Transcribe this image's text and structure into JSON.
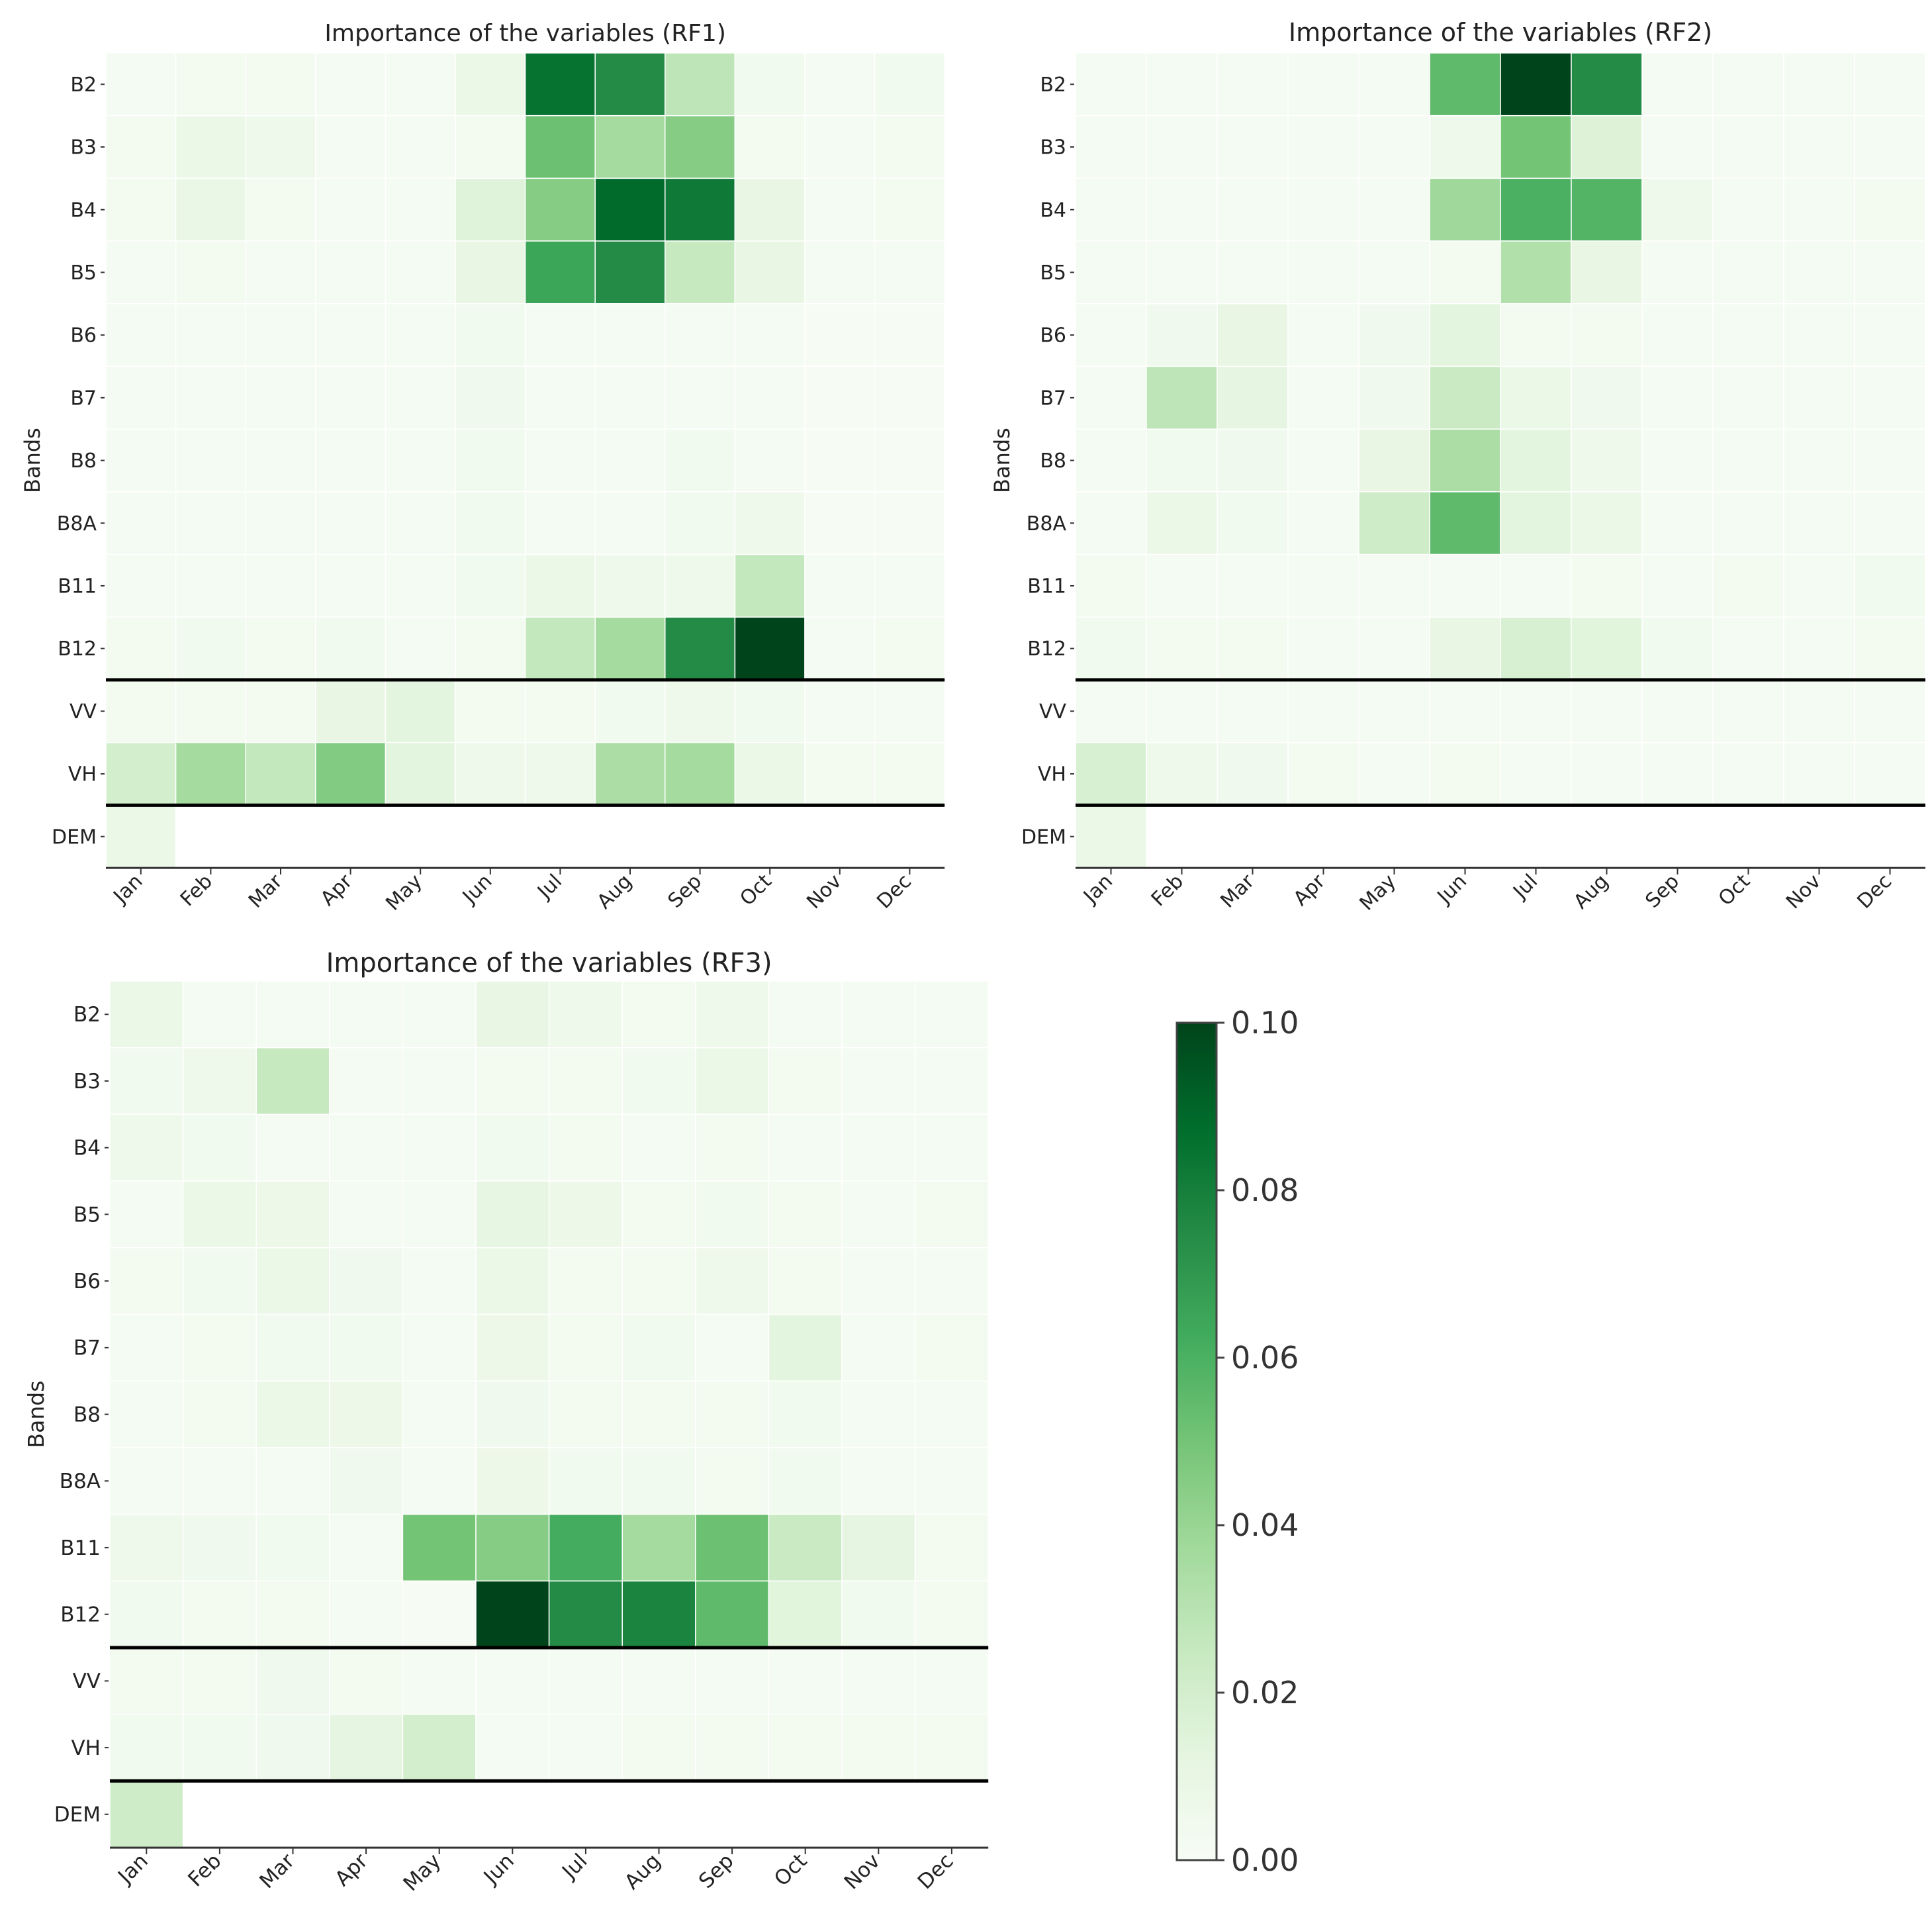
{
  "colors": {
    "scale": [
      "#f7fcf5",
      "#e5f5e0",
      "#c7e9c0",
      "#a1d99b",
      "#74c476",
      "#41ab5d",
      "#238b45",
      "#006d2c",
      "#00441b"
    ],
    "cell_stroke": "#ffffff",
    "separator": "#000000",
    "axis": "#333333"
  },
  "chart_data": [
    {
      "type": "heatmap",
      "title": "Importance of the variables (RF1)",
      "xlabel": "",
      "ylabel": "Bands",
      "x": [
        "Jan",
        "Feb",
        "Mar",
        "Apr",
        "May",
        "Jun",
        "Jul",
        "Aug",
        "Sep",
        "Oct",
        "Nov",
        "Dec"
      ],
      "y": [
        "B2",
        "B3",
        "B4",
        "B5",
        "B6",
        "B7",
        "B8",
        "B8A",
        "B11",
        "B12",
        "VV",
        "VH",
        "DEM"
      ],
      "zlim": [
        0,
        0.1
      ],
      "separators_after": [
        "B12",
        "VH"
      ],
      "values": [
        [
          0.002,
          0.003,
          0.003,
          0.002,
          0.002,
          0.008,
          0.085,
          0.075,
          0.028,
          0.004,
          0.002,
          0.004
        ],
        [
          0.003,
          0.008,
          0.006,
          0.002,
          0.002,
          0.003,
          0.052,
          0.036,
          0.045,
          0.003,
          0.002,
          0.003
        ],
        [
          0.003,
          0.009,
          0.003,
          0.002,
          0.002,
          0.015,
          0.045,
          0.088,
          0.082,
          0.01,
          0.002,
          0.003
        ],
        [
          0.002,
          0.003,
          0.002,
          0.002,
          0.002,
          0.01,
          0.065,
          0.075,
          0.025,
          0.01,
          0.002,
          0.002
        ],
        [
          0.002,
          0.002,
          0.002,
          0.002,
          0.002,
          0.004,
          0.002,
          0.002,
          0.002,
          0.002,
          0.001,
          0.001
        ],
        [
          0.002,
          0.002,
          0.002,
          0.002,
          0.002,
          0.005,
          0.002,
          0.002,
          0.002,
          0.002,
          0.001,
          0.001
        ],
        [
          0.002,
          0.002,
          0.002,
          0.002,
          0.002,
          0.004,
          0.002,
          0.002,
          0.004,
          0.002,
          0.001,
          0.001
        ],
        [
          0.002,
          0.002,
          0.002,
          0.002,
          0.002,
          0.004,
          0.002,
          0.002,
          0.004,
          0.006,
          0.001,
          0.001
        ],
        [
          0.002,
          0.002,
          0.002,
          0.002,
          0.002,
          0.004,
          0.008,
          0.006,
          0.006,
          0.026,
          0.002,
          0.002
        ],
        [
          0.003,
          0.004,
          0.003,
          0.004,
          0.002,
          0.003,
          0.026,
          0.036,
          0.075,
          0.1,
          0.002,
          0.003
        ],
        [
          0.003,
          0.003,
          0.003,
          0.01,
          0.013,
          0.003,
          0.003,
          0.004,
          0.006,
          0.004,
          0.002,
          0.002
        ],
        [
          0.02,
          0.036,
          0.026,
          0.046,
          0.013,
          0.006,
          0.006,
          0.034,
          0.036,
          0.008,
          0.003,
          0.003
        ],
        [
          0.008,
          null,
          null,
          null,
          null,
          null,
          null,
          null,
          null,
          null,
          null,
          null
        ]
      ]
    },
    {
      "type": "heatmap",
      "title": "Importance of the variables (RF2)",
      "xlabel": "",
      "ylabel": "Bands",
      "x": [
        "Jan",
        "Feb",
        "Mar",
        "Apr",
        "May",
        "Jun",
        "Jul",
        "Aug",
        "Sep",
        "Oct",
        "Nov",
        "Dec"
      ],
      "y": [
        "B2",
        "B3",
        "B4",
        "B5",
        "B6",
        "B7",
        "B8",
        "B8A",
        "B11",
        "B12",
        "VV",
        "VH",
        "DEM"
      ],
      "zlim": [
        0,
        0.1
      ],
      "separators_after": [
        "B12",
        "VH"
      ],
      "values": [
        [
          0.002,
          0.002,
          0.002,
          0.002,
          0.002,
          0.055,
          0.1,
          0.075,
          0.002,
          0.002,
          0.002,
          0.002
        ],
        [
          0.002,
          0.002,
          0.002,
          0.002,
          0.002,
          0.006,
          0.05,
          0.016,
          0.002,
          0.002,
          0.002,
          0.002
        ],
        [
          0.002,
          0.002,
          0.002,
          0.002,
          0.002,
          0.038,
          0.06,
          0.058,
          0.006,
          0.002,
          0.002,
          0.003
        ],
        [
          0.002,
          0.002,
          0.002,
          0.002,
          0.002,
          0.003,
          0.032,
          0.01,
          0.002,
          0.002,
          0.002,
          0.002
        ],
        [
          0.002,
          0.005,
          0.01,
          0.002,
          0.005,
          0.013,
          0.003,
          0.003,
          0.002,
          0.002,
          0.002,
          0.002
        ],
        [
          0.002,
          0.028,
          0.012,
          0.002,
          0.005,
          0.024,
          0.008,
          0.005,
          0.002,
          0.002,
          0.002,
          0.002
        ],
        [
          0.002,
          0.004,
          0.005,
          0.002,
          0.01,
          0.034,
          0.013,
          0.006,
          0.002,
          0.002,
          0.002,
          0.002
        ],
        [
          0.002,
          0.008,
          0.004,
          0.002,
          0.022,
          0.055,
          0.013,
          0.008,
          0.002,
          0.002,
          0.002,
          0.002
        ],
        [
          0.003,
          0.002,
          0.002,
          0.002,
          0.002,
          0.002,
          0.002,
          0.003,
          0.002,
          0.003,
          0.002,
          0.004
        ],
        [
          0.004,
          0.003,
          0.003,
          0.002,
          0.002,
          0.01,
          0.018,
          0.014,
          0.004,
          0.002,
          0.002,
          0.003
        ],
        [
          0.002,
          0.002,
          0.002,
          0.002,
          0.002,
          0.002,
          0.002,
          0.002,
          0.002,
          0.002,
          0.002,
          0.002
        ],
        [
          0.018,
          0.006,
          0.005,
          0.003,
          0.002,
          0.003,
          0.002,
          0.002,
          0.002,
          0.002,
          0.002,
          0.002
        ],
        [
          0.008,
          null,
          null,
          null,
          null,
          null,
          null,
          null,
          null,
          null,
          null,
          null
        ]
      ]
    },
    {
      "type": "heatmap",
      "title": "Importance of the variables (RF3)",
      "xlabel": "",
      "ylabel": "Bands",
      "x": [
        "Jan",
        "Feb",
        "Mar",
        "Apr",
        "May",
        "Jun",
        "Jul",
        "Aug",
        "Sep",
        "Oct",
        "Nov",
        "Dec"
      ],
      "y": [
        "B2",
        "B3",
        "B4",
        "B5",
        "B6",
        "B7",
        "B8",
        "B8A",
        "B11",
        "B12",
        "VV",
        "VH",
        "DEM"
      ],
      "zlim": [
        0,
        0.1
      ],
      "separators_after": [
        "B12",
        "VH"
      ],
      "values": [
        [
          0.008,
          0.002,
          0.002,
          0.002,
          0.002,
          0.01,
          0.006,
          0.003,
          0.006,
          0.002,
          0.002,
          0.002
        ],
        [
          0.004,
          0.006,
          0.025,
          0.002,
          0.002,
          0.003,
          0.003,
          0.004,
          0.008,
          0.003,
          0.002,
          0.002
        ],
        [
          0.006,
          0.004,
          0.002,
          0.002,
          0.002,
          0.004,
          0.003,
          0.002,
          0.003,
          0.002,
          0.002,
          0.002
        ],
        [
          0.002,
          0.008,
          0.007,
          0.002,
          0.002,
          0.011,
          0.007,
          0.003,
          0.004,
          0.003,
          0.002,
          0.003
        ],
        [
          0.003,
          0.004,
          0.008,
          0.005,
          0.002,
          0.008,
          0.003,
          0.003,
          0.006,
          0.003,
          0.002,
          0.002
        ],
        [
          0.002,
          0.003,
          0.004,
          0.004,
          0.002,
          0.007,
          0.003,
          0.004,
          0.002,
          0.013,
          0.002,
          0.003
        ],
        [
          0.002,
          0.003,
          0.008,
          0.007,
          0.002,
          0.005,
          0.003,
          0.003,
          0.003,
          0.004,
          0.002,
          0.002
        ],
        [
          0.002,
          0.002,
          0.002,
          0.005,
          0.002,
          0.007,
          0.004,
          0.004,
          0.003,
          0.004,
          0.002,
          0.002
        ],
        [
          0.006,
          0.005,
          0.004,
          0.002,
          0.05,
          0.045,
          0.062,
          0.036,
          0.052,
          0.024,
          0.012,
          0.003
        ],
        [
          0.004,
          0.003,
          0.003,
          0.002,
          0.001,
          0.1,
          0.075,
          0.078,
          0.055,
          0.014,
          0.004,
          0.003
        ],
        [
          0.003,
          0.003,
          0.005,
          0.003,
          0.002,
          0.002,
          0.002,
          0.002,
          0.002,
          0.002,
          0.002,
          0.002
        ],
        [
          0.004,
          0.004,
          0.005,
          0.012,
          0.02,
          0.002,
          0.002,
          0.003,
          0.003,
          0.003,
          0.003,
          0.003
        ],
        [
          0.022,
          null,
          null,
          null,
          null,
          null,
          null,
          null,
          null,
          null,
          null,
          null
        ]
      ]
    }
  ],
  "colorbar": {
    "range": [
      0,
      0.1
    ],
    "ticks": [
      {
        "value": 0.0,
        "label": "0.00"
      },
      {
        "value": 0.02,
        "label": "0.02"
      },
      {
        "value": 0.04,
        "label": "0.04"
      },
      {
        "value": 0.06,
        "label": "0.06"
      },
      {
        "value": 0.08,
        "label": "0.08"
      },
      {
        "value": 0.1,
        "label": "0.10"
      }
    ]
  }
}
